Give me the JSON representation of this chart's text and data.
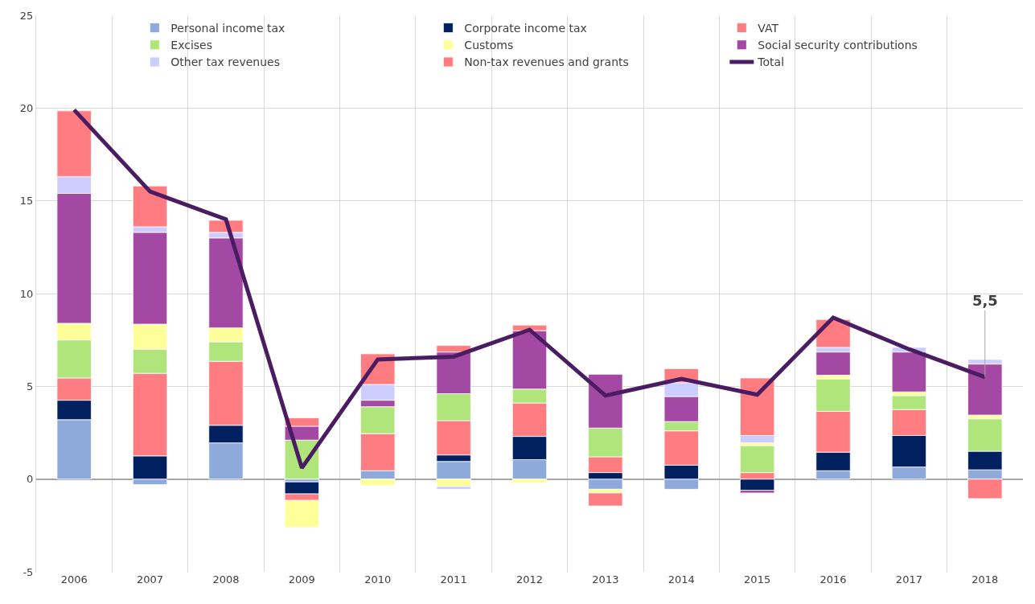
{
  "chart_data": {
    "type": "bar",
    "stacked": true,
    "categories": [
      "2006",
      "2007",
      "2008",
      "2009",
      "2010",
      "2011",
      "2012",
      "2013",
      "2014",
      "2015",
      "2016",
      "2017",
      "2018"
    ],
    "series": [
      {
        "name": "Personal income tax",
        "color": "#8eaadb",
        "values": [
          3.2,
          -0.3,
          1.95,
          -0.15,
          0.45,
          0.95,
          1.05,
          -0.55,
          -0.55,
          null,
          0.45,
          0.65,
          0.5
        ]
      },
      {
        "name": "Corporate income tax",
        "color": "#002060",
        "values": [
          1.05,
          1.25,
          0.95,
          -0.65,
          null,
          0.35,
          1.25,
          0.35,
          0.75,
          -0.6,
          1.0,
          1.7,
          1.0
        ]
      },
      {
        "name": "VAT",
        "color": "#ff7c80",
        "values": [
          1.2,
          4.45,
          3.45,
          -0.35,
          2.0,
          1.85,
          1.8,
          0.85,
          1.85,
          0.35,
          2.2,
          1.4,
          null
        ]
      },
      {
        "name": "Excises",
        "color": "#b0e57c",
        "values": [
          2.05,
          1.3,
          1.05,
          2.1,
          1.45,
          1.45,
          0.75,
          1.55,
          0.5,
          1.45,
          1.75,
          0.75,
          1.75
        ]
      },
      {
        "name": "Customs",
        "color": "#ffff99",
        "values": [
          0.9,
          1.35,
          0.75,
          -1.45,
          -0.35,
          -0.4,
          -0.2,
          -0.2,
          null,
          0.15,
          0.2,
          0.2,
          0.2
        ]
      },
      {
        "name": "Social security contributions",
        "color": "#a349a4",
        "values": [
          7.0,
          4.95,
          4.85,
          0.75,
          0.35,
          2.25,
          3.15,
          2.9,
          1.35,
          -0.15,
          1.25,
          2.15,
          2.75
        ]
      },
      {
        "name": "Other tax revenues",
        "color": "#ccccff",
        "values": [
          0.9,
          0.3,
          0.3,
          null,
          0.85,
          -0.15,
          null,
          null,
          0.75,
          0.4,
          0.25,
          0.25,
          0.25
        ]
      },
      {
        "name": "Non-tax revenues and grants",
        "color": "#ff7c80",
        "values": [
          3.55,
          2.2,
          0.65,
          0.45,
          1.65,
          0.35,
          0.3,
          -0.7,
          0.75,
          3.1,
          1.5,
          null,
          -1.05
        ]
      },
      {
        "name": "Total",
        "type": "line",
        "color": "#4a1c62",
        "values": [
          19.9,
          15.5,
          14.0,
          0.6,
          6.45,
          6.6,
          8.05,
          4.5,
          5.4,
          4.55,
          8.7,
          7.0,
          5.5
        ]
      }
    ],
    "ylim": [
      -5,
      25
    ],
    "yticks": [
      -5,
      0,
      5,
      10,
      15,
      20,
      25
    ],
    "grid": true,
    "legend": "top",
    "marker": "none",
    "annotations": [
      {
        "text": "5,5",
        "x": "2018",
        "y": 5.5
      }
    ]
  }
}
